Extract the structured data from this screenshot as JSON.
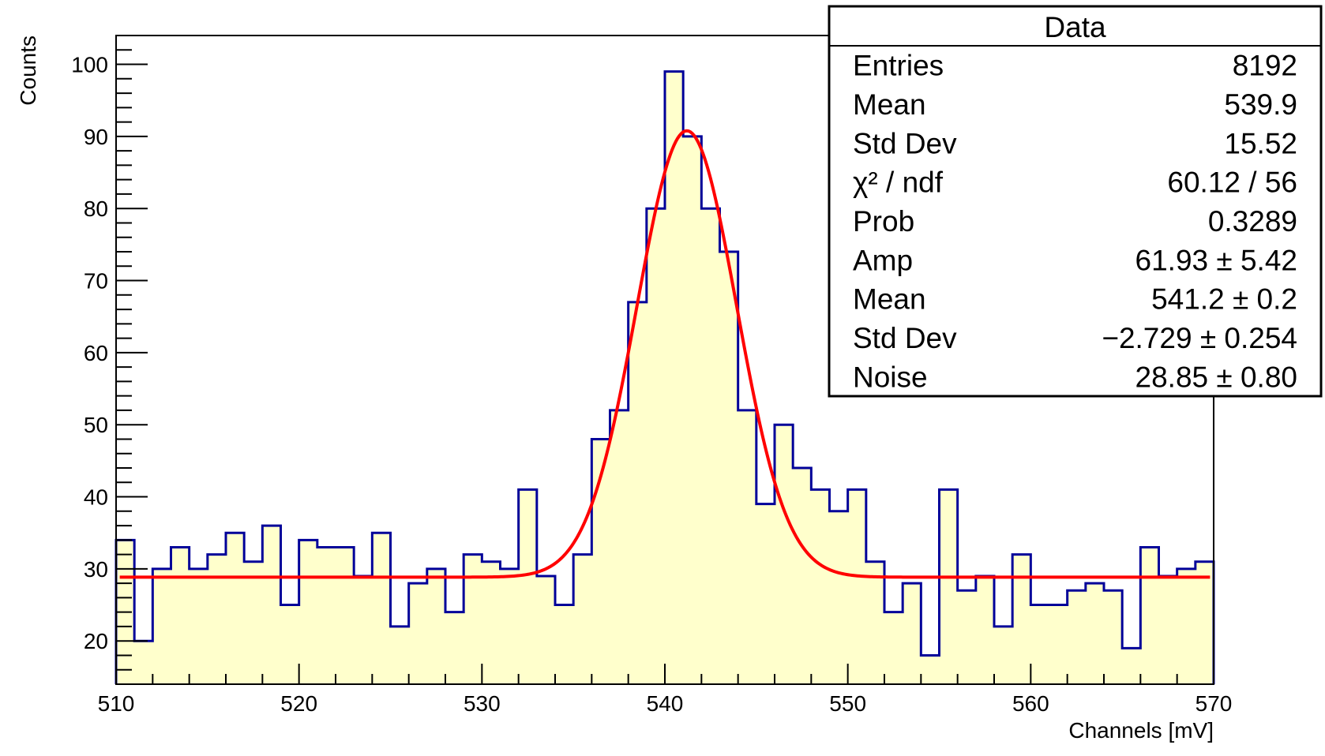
{
  "chart_data": {
    "type": "histogram",
    "xlabel": "Channels [mV]",
    "ylabel": "Counts",
    "xlim": [
      510,
      570
    ],
    "ylim": [
      14,
      104
    ],
    "bin_width": 1,
    "x_ticks": [
      510,
      520,
      530,
      540,
      550,
      560,
      570
    ],
    "y_ticks": [
      20,
      30,
      40,
      50,
      60,
      70,
      80,
      90,
      100
    ],
    "counts": [
      34,
      20,
      30,
      33,
      30,
      32,
      35,
      31,
      36,
      25,
      34,
      33,
      33,
      29,
      35,
      22,
      28,
      30,
      24,
      32,
      31,
      30,
      41,
      29,
      25,
      32,
      48,
      52,
      67,
      80,
      99,
      90,
      80,
      74,
      52,
      39,
      50,
      44,
      41,
      38,
      41,
      31,
      24,
      28,
      18,
      41,
      27,
      29,
      22,
      32,
      25,
      25,
      27,
      28,
      27,
      19,
      33,
      29,
      30,
      31
    ],
    "fill_color": "#ffffcc",
    "line_color": "#000099",
    "fit": {
      "function": "gaus + const",
      "color": "#ff0000",
      "amp": 61.93,
      "mean": 541.2,
      "sigma": -2.729,
      "noise": 28.85
    },
    "stats_box": {
      "title": "Data",
      "rows": [
        {
          "label": "Entries",
          "value": "8192"
        },
        {
          "label": "Mean",
          "value": "539.9"
        },
        {
          "label": "Std Dev",
          "value": "15.52"
        },
        {
          "label": "χ² / ndf",
          "value": "60.12 / 56"
        },
        {
          "label": "Prob",
          "value": "0.3289"
        },
        {
          "label": "Amp",
          "value": "61.93 ± 5.42"
        },
        {
          "label": "Mean",
          "value": "541.2 ± 0.2"
        },
        {
          "label": "Std Dev",
          "value": "−2.729 ± 0.254"
        },
        {
          "label": "Noise",
          "value": "28.85 ± 0.80"
        }
      ]
    }
  }
}
